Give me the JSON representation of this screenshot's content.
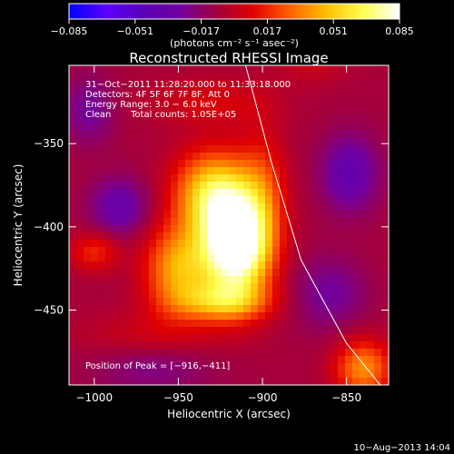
{
  "chart_data": {
    "type": "heatmap",
    "title": "Reconstructed RHESSI Image",
    "xlabel": "Heliocentric X (arcsec)",
    "ylabel": "Heliocentric Y (arcsec)",
    "xlim": [
      -1015,
      -825
    ],
    "ylim": [
      -495,
      -303
    ],
    "xticks": [
      -1000,
      -950,
      -900,
      -850
    ],
    "xtick_labels": [
      "−1000",
      "−950",
      "−900",
      "−850"
    ],
    "yticks": [
      -350,
      -400,
      -450
    ],
    "ytick_labels": [
      "−350",
      "−400",
      "−450"
    ],
    "colorbar": {
      "min": -0.085,
      "max": 0.085,
      "ticks": [
        -0.085,
        -0.051,
        -0.017,
        0.017,
        0.051,
        0.085
      ],
      "tick_labels": [
        "−0.085",
        "−0.051",
        "−0.017",
        "0.017",
        "0.051",
        "0.085"
      ],
      "label": "(photons cm⁻² s⁻¹ asec⁻²)"
    },
    "annotations": {
      "time_range": "31−Oct−2011 11:28:20.000 to 11:33:18.000",
      "detectors": "Detectors: 4F 5F 6F 7F 8F, Att 0",
      "energy_range": "Energy Range: 3.0 − 6.0 keV",
      "clean": "Clean",
      "total_counts": "Total counts: 1.05E+05",
      "peak_position": "Position of Peak = [−916,−411]"
    },
    "peak": {
      "x": -916,
      "y": -411
    },
    "limb_curve": [
      [
        -910,
        -303
      ],
      [
        -895,
        -360
      ],
      [
        -877,
        -420
      ],
      [
        -850,
        -470
      ],
      [
        -830,
        -495
      ]
    ],
    "sources": [
      {
        "x": -916,
        "y": -411,
        "amp": 0.11,
        "sx": 14,
        "sy": 22
      },
      {
        "x": -930,
        "y": -380,
        "amp": 0.06,
        "sx": 16,
        "sy": 18
      },
      {
        "x": -950,
        "y": -425,
        "amp": 0.05,
        "sx": 14,
        "sy": 18
      },
      {
        "x": -925,
        "y": -445,
        "amp": 0.04,
        "sx": 20,
        "sy": 8
      },
      {
        "x": -900,
        "y": -380,
        "amp": 0.025,
        "sx": 10,
        "sy": 28
      },
      {
        "x": -930,
        "y": -325,
        "amp": 0.015,
        "sx": 25,
        "sy": 10
      },
      {
        "x": -1000,
        "y": -415,
        "amp": 0.025,
        "sx": 10,
        "sy": 8
      },
      {
        "x": -840,
        "y": -485,
        "amp": 0.045,
        "sx": 12,
        "sy": 12
      },
      {
        "x": -965,
        "y": -465,
        "amp": 0.012,
        "sx": 30,
        "sy": 10
      },
      {
        "x": -870,
        "y": -300,
        "amp": 0.012,
        "sx": 15,
        "sy": 10
      },
      {
        "x": -985,
        "y": -388,
        "amp": -0.028,
        "sx": 12,
        "sy": 12
      },
      {
        "x": -1003,
        "y": -330,
        "amp": -0.02,
        "sx": 10,
        "sy": 14
      },
      {
        "x": -848,
        "y": -368,
        "amp": -0.03,
        "sx": 12,
        "sy": 16
      },
      {
        "x": -860,
        "y": -440,
        "amp": -0.02,
        "sx": 15,
        "sy": 15
      },
      {
        "x": -965,
        "y": -485,
        "amp": -0.015,
        "sx": 25,
        "sy": 10
      }
    ],
    "background_level": -0.008,
    "grid": false
  },
  "footer_timestamp": "10−Aug−2013 14:04",
  "colors": {
    "background": "#000000",
    "text": "#ffffff",
    "colorbar_stops": [
      "#0000ff",
      "#5a00ff",
      "#5a00b8",
      "#7000a0",
      "#a00040",
      "#e00000",
      "#ff6000",
      "#ffc000",
      "#ffff50",
      "#ffffff"
    ]
  }
}
